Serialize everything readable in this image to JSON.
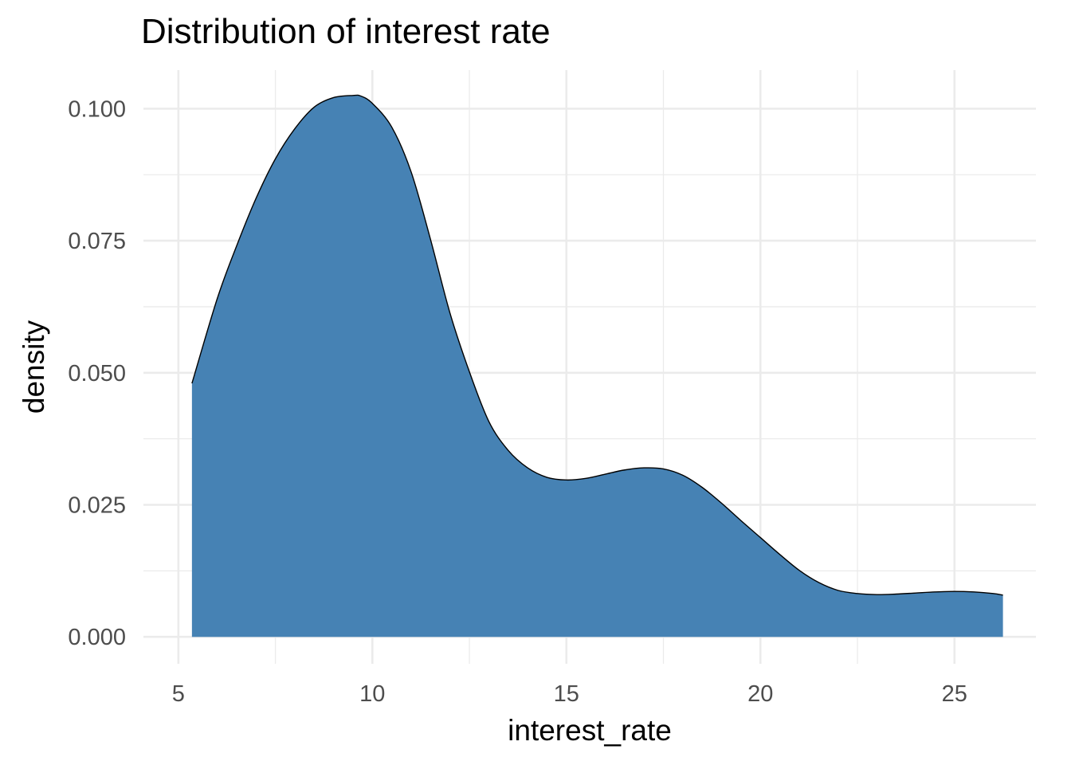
{
  "chart_data": {
    "type": "area",
    "title": "Distribution of interest rate",
    "xlabel": "interest_rate",
    "ylabel": "density",
    "xlim": [
      4.1,
      27.1
    ],
    "ylim": [
      -0.0051,
      0.1073
    ],
    "x_ticks": [
      5,
      10,
      15,
      20,
      25
    ],
    "x_tick_labels": [
      "5",
      "10",
      "15",
      "20",
      "25"
    ],
    "y_ticks": [
      0.0,
      0.025,
      0.05,
      0.075,
      0.1
    ],
    "y_tick_labels": [
      "0.000",
      "0.025",
      "0.050",
      "0.075",
      "0.100"
    ],
    "grid": true,
    "fill_color": "#4682b4",
    "line_color": "#000000",
    "series": [
      {
        "x": [
          5.35,
          6.0,
          6.5,
          7.0,
          7.5,
          8.0,
          8.5,
          9.0,
          9.5,
          9.7,
          10.0,
          10.5,
          11.0,
          11.5,
          12.0,
          12.5,
          13.0,
          13.5,
          14.0,
          14.5,
          15.0,
          15.5,
          16.0,
          16.5,
          17.0,
          17.5,
          18.0,
          18.5,
          19.0,
          19.5,
          20.0,
          20.5,
          21.0,
          21.5,
          22.0,
          22.5,
          23.0,
          23.5,
          24.0,
          24.5,
          25.0,
          25.5,
          26.0,
          26.25
        ],
        "y": [
          0.048,
          0.064,
          0.074,
          0.083,
          0.0905,
          0.0962,
          0.1003,
          0.1021,
          0.1025,
          0.1024,
          0.101,
          0.0965,
          0.088,
          0.0752,
          0.0613,
          0.0502,
          0.0408,
          0.0353,
          0.032,
          0.0302,
          0.0297,
          0.03,
          0.0308,
          0.0316,
          0.032,
          0.0318,
          0.0306,
          0.0283,
          0.0253,
          0.022,
          0.0188,
          0.0156,
          0.0126,
          0.0103,
          0.0088,
          0.0082,
          0.008,
          0.0081,
          0.0083,
          0.0085,
          0.0086,
          0.0085,
          0.0082,
          0.0079
        ]
      }
    ]
  }
}
